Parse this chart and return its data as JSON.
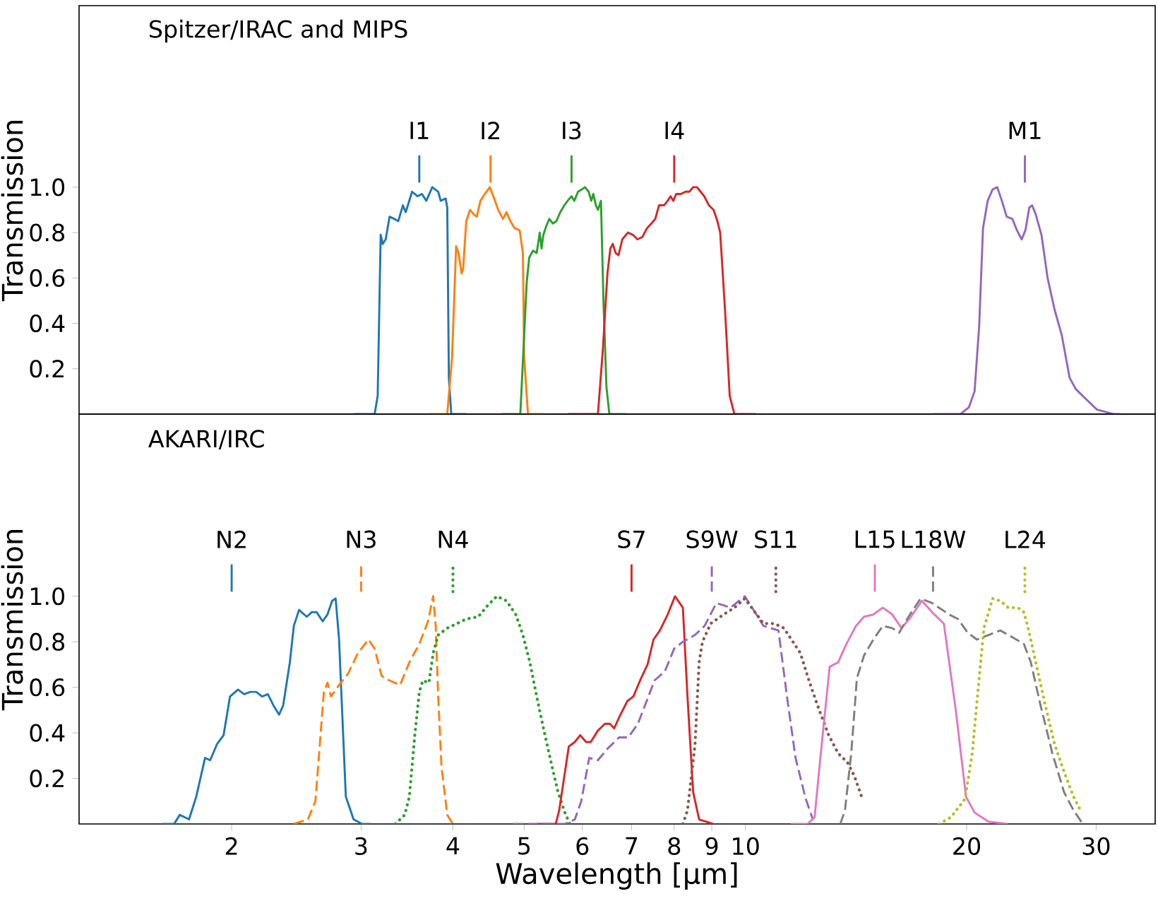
{
  "chart_data": [
    {
      "type": "line",
      "title": "Spitzer/IRAC and MIPS",
      "ylabel": "Transmission",
      "log": "x",
      "tick_labels": "y",
      "xlim": [
        1.24,
        36.1
      ],
      "ylim": [
        0,
        1.8
      ],
      "yticks": [
        0.2,
        0.4,
        0.6,
        0.8,
        {
          "value": 1,
          "label": "1.0"
        }
      ],
      "series": [
        {
          "color": "#1f77b4",
          "line_style": "solid",
          "x": [
            2.93,
            3.13,
            3.16,
            3.19,
            3.21,
            3.24,
            3.28,
            3.33,
            3.37,
            3.42,
            3.45,
            3.52,
            3.58,
            3.63,
            3.68,
            3.75,
            3.82,
            3.85,
            3.91,
            3.93,
            3.95,
            3.98,
            4.17
          ],
          "values": [
            0,
            0,
            0.08,
            0.79,
            0.75,
            0.77,
            0.87,
            0.86,
            0.85,
            0.92,
            0.89,
            0.98,
            0.96,
            0.97,
            0.94,
            1.0,
            0.98,
            0.94,
            0.95,
            0.91,
            0.16,
            0,
            0
          ]
        },
        {
          "color": "#ff7f0e",
          "line_style": "solid",
          "x": [
            3.71,
            3.93,
            3.99,
            4.04,
            4.07,
            4.11,
            4.13,
            4.17,
            4.22,
            4.27,
            4.31,
            4.36,
            4.42,
            4.49,
            4.54,
            4.61,
            4.68,
            4.73,
            4.79,
            4.85,
            4.93,
            4.98,
            5.0,
            5.06,
            5.32
          ],
          "values": [
            0,
            0,
            0.25,
            0.74,
            0.71,
            0.62,
            0.64,
            0.85,
            0.9,
            0.88,
            0.87,
            0.94,
            0.97,
            1.0,
            0.96,
            0.9,
            0.86,
            0.89,
            0.85,
            0.82,
            0.81,
            0.71,
            0.25,
            0,
            0
          ]
        },
        {
          "color": "#2ca02c",
          "line_style": "solid",
          "x": [
            4.66,
            4.94,
            4.99,
            5.04,
            5.08,
            5.14,
            5.2,
            5.25,
            5.28,
            5.31,
            5.36,
            5.41,
            5.47,
            5.53,
            5.6,
            5.67,
            5.73,
            5.8,
            5.85,
            5.92,
            5.99,
            6.05,
            6.12,
            6.17,
            6.21,
            6.26,
            6.3,
            6.36,
            6.41,
            6.47,
            6.53,
            6.88
          ],
          "values": [
            0,
            0,
            0.29,
            0.58,
            0.69,
            0.72,
            0.71,
            0.8,
            0.73,
            0.79,
            0.83,
            0.86,
            0.84,
            0.85,
            0.89,
            0.92,
            0.94,
            0.96,
            0.94,
            0.98,
            0.99,
            1.0,
            0.98,
            0.94,
            0.97,
            0.92,
            0.9,
            0.94,
            0.5,
            0.12,
            0,
            0
          ]
        },
        {
          "color": "#d62728",
          "line_style": "solid",
          "x": [
            5.73,
            6.3,
            6.4,
            6.49,
            6.55,
            6.6,
            6.66,
            6.72,
            6.8,
            6.92,
            7.03,
            7.13,
            7.24,
            7.35,
            7.45,
            7.54,
            7.63,
            7.75,
            7.84,
            7.91,
            7.98,
            8.05,
            8.17,
            8.29,
            8.39,
            8.49,
            8.59,
            8.69,
            8.79,
            8.92,
            9.05,
            9.16,
            9.24,
            9.38,
            9.52,
            9.66,
            10.33
          ],
          "values": [
            0,
            0,
            0.29,
            0.62,
            0.73,
            0.75,
            0.71,
            0.7,
            0.77,
            0.8,
            0.79,
            0.77,
            0.78,
            0.82,
            0.84,
            0.86,
            0.92,
            0.92,
            0.94,
            0.96,
            0.94,
            0.97,
            0.97,
            0.98,
            0.98,
            1.0,
            1.0,
            0.98,
            0.96,
            0.92,
            0.9,
            0.85,
            0.8,
            0.46,
            0.08,
            0,
            0
          ]
        },
        {
          "color": "#9467bd",
          "line_style": "solid",
          "x": [
            17.96,
            19.62,
            20.14,
            20.5,
            20.8,
            21.05,
            21.36,
            21.69,
            22.01,
            22.33,
            22.67,
            23.08,
            23.41,
            23.76,
            24.04,
            24.33,
            24.55,
            24.83,
            25.28,
            25.77,
            26.34,
            26.93,
            27.61,
            28.15,
            28.98,
            30.08,
            31.68,
            32.37
          ],
          "values": [
            0,
            0,
            0.03,
            0.1,
            0.39,
            0.82,
            0.94,
            0.99,
            1.0,
            0.94,
            0.87,
            0.86,
            0.81,
            0.77,
            0.81,
            0.91,
            0.92,
            0.88,
            0.79,
            0.6,
            0.46,
            0.35,
            0.16,
            0.11,
            0.07,
            0.02,
            0,
            0
          ]
        }
      ],
      "ref_lines": [
        {
          "axis": "x",
          "value": 3.6,
          "label": "I1",
          "color": "#1f77b4",
          "line_style": "solid"
        },
        {
          "axis": "x",
          "value": 4.5,
          "label": "I2",
          "color": "#ff7f0e",
          "line_style": "solid"
        },
        {
          "axis": "x",
          "value": 5.8,
          "label": "I3",
          "color": "#2ca02c",
          "line_style": "solid"
        },
        {
          "axis": "x",
          "value": 8.0,
          "label": "I4",
          "color": "#d62728",
          "line_style": "solid"
        },
        {
          "axis": "x",
          "value": 24,
          "label": "M1",
          "color": "#9467bd",
          "line_style": "solid"
        }
      ]
    },
    {
      "type": "line",
      "title": "AKARI/IRC",
      "ylabel": "Transmission",
      "xlabel": "Wavelength [μm]",
      "log": "x",
      "xlim": [
        1.24,
        36.1
      ],
      "ylim": [
        0,
        1.8
      ],
      "xticks": [
        2,
        3,
        4,
        5,
        6,
        7,
        8,
        9,
        10,
        20,
        30
      ],
      "yticks": [
        0.2,
        0.4,
        0.6,
        0.8,
        {
          "value": 1,
          "label": "1.0"
        }
      ],
      "series": [
        {
          "color": "#1f77b4",
          "line_style": "solid",
          "x": [
            1.61,
            1.67,
            1.7,
            1.75,
            1.79,
            1.84,
            1.87,
            1.91,
            1.95,
            1.99,
            2.04,
            2.08,
            2.12,
            2.16,
            2.2,
            2.24,
            2.28,
            2.32,
            2.35,
            2.4,
            2.43,
            2.47,
            2.53,
            2.57,
            2.61,
            2.66,
            2.7,
            2.74,
            2.77,
            2.8,
            2.83,
            2.86,
            2.93,
            3.01,
            3.09
          ],
          "values": [
            0,
            0,
            0.04,
            0.02,
            0.12,
            0.29,
            0.28,
            0.35,
            0.39,
            0.56,
            0.59,
            0.57,
            0.58,
            0.58,
            0.56,
            0.57,
            0.52,
            0.48,
            0.52,
            0.71,
            0.87,
            0.94,
            0.91,
            0.93,
            0.93,
            0.89,
            0.92,
            0.98,
            0.99,
            0.81,
            0.46,
            0.12,
            0.02,
            0,
            0
          ]
        },
        {
          "color": "#ff7f0e",
          "line_style": "dashed",
          "x": [
            2.43,
            2.54,
            2.6,
            2.67,
            2.7,
            2.73,
            2.8,
            2.88,
            2.97,
            3.07,
            3.13,
            3.2,
            3.28,
            3.39,
            3.49,
            3.6,
            3.7,
            3.76,
            3.79,
            3.82,
            3.86,
            3.93,
            4.0
          ],
          "values": [
            0,
            0.02,
            0.1,
            0.58,
            0.62,
            0.56,
            0.61,
            0.66,
            0.75,
            0.81,
            0.77,
            0.65,
            0.63,
            0.61,
            0.71,
            0.79,
            0.89,
            1.0,
            0.87,
            0.56,
            0.25,
            0.04,
            0
          ]
        },
        {
          "color": "#2ca02c",
          "line_style": "dotted",
          "x": [
            3.34,
            3.44,
            3.49,
            3.55,
            3.6,
            3.64,
            3.71,
            3.76,
            3.82,
            3.93,
            4.05,
            4.17,
            4.33,
            4.46,
            4.59,
            4.73,
            4.87,
            4.98,
            5.09,
            5.2,
            5.32,
            5.44,
            5.56,
            5.68,
            5.77
          ],
          "values": [
            0,
            0.04,
            0.12,
            0.39,
            0.58,
            0.63,
            0.62,
            0.75,
            0.83,
            0.86,
            0.88,
            0.9,
            0.91,
            0.96,
            1.0,
            0.98,
            0.92,
            0.83,
            0.71,
            0.56,
            0.41,
            0.27,
            0.14,
            0.05,
            0
          ]
        },
        {
          "color": "#d62728",
          "line_style": "solid",
          "x": [
            5.2,
            5.52,
            5.58,
            5.75,
            5.86,
            5.96,
            6.07,
            6.16,
            6.3,
            6.44,
            6.54,
            6.63,
            6.76,
            6.91,
            7.04,
            7.19,
            7.36,
            7.5,
            7.65,
            7.84,
            8.02,
            8.22,
            8.34,
            8.49,
            8.65,
            9.04
          ],
          "values": [
            0,
            0,
            0.06,
            0.34,
            0.36,
            0.39,
            0.36,
            0.36,
            0.41,
            0.44,
            0.44,
            0.42,
            0.48,
            0.54,
            0.56,
            0.63,
            0.7,
            0.81,
            0.85,
            0.92,
            1.0,
            0.95,
            0.56,
            0.14,
            0.02,
            0
          ]
        },
        {
          "color": "#9467bd",
          "line_style": "dashed",
          "x": [
            4.83,
            5.68,
            5.86,
            5.98,
            6.13,
            6.3,
            6.49,
            6.73,
            6.93,
            7.14,
            7.36,
            7.52,
            7.77,
            8.0,
            8.22,
            8.54,
            8.8,
            9.13,
            9.34,
            9.54,
            9.98,
            10.35,
            10.58,
            10.82,
            11.09,
            11.39,
            11.7,
            12.08,
            12.35
          ],
          "values": [
            0,
            0,
            0.02,
            0.1,
            0.29,
            0.28,
            0.33,
            0.38,
            0.38,
            0.44,
            0.55,
            0.63,
            0.67,
            0.77,
            0.8,
            0.83,
            0.87,
            0.97,
            0.96,
            0.95,
            1.0,
            0.92,
            0.87,
            0.86,
            0.85,
            0.56,
            0.29,
            0.11,
            0.02
          ]
        },
        {
          "color": "#8c564b",
          "line_style": "dotted",
          "x": [
            8.22,
            8.34,
            8.54,
            8.65,
            8.74,
            8.97,
            9.34,
            9.66,
            9.98,
            10.25,
            10.58,
            10.95,
            11.28,
            11.88,
            12.23,
            12.6,
            12.98,
            13.37,
            13.77,
            14.07,
            14.39
          ],
          "values": [
            0,
            0.06,
            0.35,
            0.71,
            0.8,
            0.88,
            0.92,
            0.95,
            0.99,
            0.94,
            0.88,
            0.88,
            0.86,
            0.75,
            0.62,
            0.5,
            0.39,
            0.31,
            0.27,
            0.21,
            0.12
          ]
        },
        {
          "color": "#e377c2",
          "line_style": "solid",
          "x": [
            11.53,
            12.15,
            12.42,
            12.7,
            13.02,
            13.37,
            13.72,
            14.14,
            14.5,
            14.93,
            15.38,
            15.84,
            16.31,
            16.8,
            17.38,
            17.95,
            18.62,
            19.33,
            19.96,
            20.5,
            21.42,
            22.72
          ],
          "values": [
            0,
            0,
            0.03,
            0.35,
            0.69,
            0.71,
            0.79,
            0.87,
            0.91,
            0.92,
            0.95,
            0.92,
            0.86,
            0.91,
            0.98,
            0.93,
            0.88,
            0.5,
            0.12,
            0.05,
            0.01,
            0
          ]
        },
        {
          "color": "#7f7f7f",
          "line_style": "dashed",
          "x": [
            13.46,
            13.66,
            13.93,
            14.18,
            14.5,
            14.93,
            15.38,
            15.84,
            16.19,
            16.67,
            17.31,
            17.95,
            18.93,
            19.47,
            20.06,
            20.65,
            21.42,
            22.22,
            23.08,
            23.93,
            24.45,
            25.21,
            26.16,
            27.13,
            27.95,
            28.78
          ],
          "values": [
            0,
            0.06,
            0.31,
            0.64,
            0.74,
            0.81,
            0.87,
            0.86,
            0.84,
            0.91,
            0.99,
            0.97,
            0.92,
            0.9,
            0.84,
            0.81,
            0.83,
            0.85,
            0.82,
            0.79,
            0.71,
            0.52,
            0.31,
            0.14,
            0.06,
            0
          ]
        },
        {
          "color": "#bcbd22",
          "line_style": "dotted",
          "x": [
            18.35,
            19.04,
            19.9,
            20.35,
            20.74,
            21.11,
            21.69,
            22.22,
            22.78,
            23.47,
            23.93,
            24.29,
            24.83,
            25.59,
            26.34,
            27.13,
            27.95,
            28.56
          ],
          "values": [
            0,
            0.03,
            0.11,
            0.31,
            0.6,
            0.86,
            0.99,
            0.98,
            0.95,
            0.95,
            0.93,
            0.85,
            0.71,
            0.52,
            0.35,
            0.23,
            0.12,
            0.06
          ]
        }
      ],
      "ref_lines": [
        {
          "axis": "x",
          "value": 2.0,
          "label": "N2",
          "color": "#1f77b4",
          "line_style": "solid"
        },
        {
          "axis": "x",
          "value": 3.0,
          "label": "N3",
          "color": "#ff7f0e",
          "line_style": "dashed"
        },
        {
          "axis": "x",
          "value": 4.0,
          "label": "N4",
          "color": "#2ca02c",
          "line_style": "dotted"
        },
        {
          "axis": "x",
          "value": 7.0,
          "label": "S7",
          "color": "#d62728",
          "line_style": "solid"
        },
        {
          "axis": "x",
          "value": 9.0,
          "label": "S9W",
          "color": "#9467bd",
          "line_style": "dashed"
        },
        {
          "axis": "x",
          "value": 11.0,
          "label": "S11",
          "color": "#8c564b",
          "line_style": "dotted"
        },
        {
          "axis": "x",
          "value": 15.0,
          "label": "L15",
          "color": "#e377c2",
          "line_style": "solid"
        },
        {
          "axis": "x",
          "value": 18.0,
          "label": "L18W",
          "color": "#7f7f7f",
          "line_style": "dashed"
        },
        {
          "axis": "x",
          "value": 24.0,
          "label": "L24",
          "color": "#bcbd22",
          "line_style": "dotted"
        }
      ]
    }
  ]
}
